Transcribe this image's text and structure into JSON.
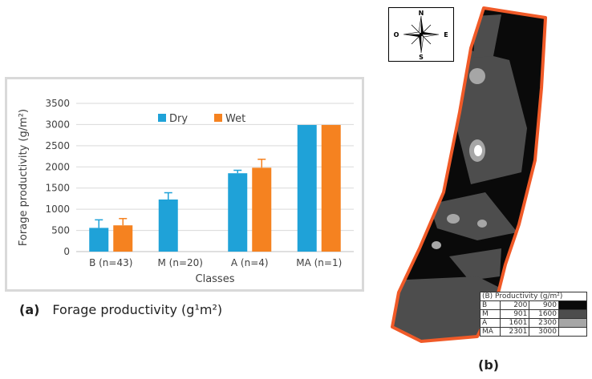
{
  "chart_data": {
    "type": "bar",
    "categories": [
      "B (n=43)",
      "M (n=20)",
      "A (n=4)",
      "MA (n=1)"
    ],
    "series": [
      {
        "name": "Dry",
        "color": "#1fa2d8",
        "values": [
          560,
          1230,
          1850,
          2990
        ],
        "errors": [
          190,
          160,
          70,
          0
        ]
      },
      {
        "name": "Wet",
        "color": "#f58220",
        "values": [
          620,
          null,
          1980,
          2990
        ],
        "errors": [
          160,
          null,
          200,
          0
        ]
      }
    ],
    "xlabel": "Classes",
    "ylabel": "Forage productivity (g/m²)",
    "ylim": [
      0,
      3500
    ],
    "yticks": [
      0,
      500,
      1000,
      1500,
      2000,
      2500,
      3000,
      3500
    ],
    "grid": true,
    "legend_position": "top-center"
  },
  "caption_a": {
    "letter": "(a)",
    "text": "Forage productivity (g¹m²)"
  },
  "compass": {
    "north": "N",
    "south": "S",
    "east": "E",
    "west": "O"
  },
  "map": {
    "legend_title": "(B) Productivity (g/m²)",
    "legend_rows": [
      {
        "cls": "B",
        "min": "200",
        "max": "900",
        "color": "#0a0a0a"
      },
      {
        "cls": "M",
        "min": "901",
        "max": "1600",
        "color": "#4d4d4d"
      },
      {
        "cls": "A",
        "min": "1601",
        "max": "2300",
        "color": "#a6a6a6"
      },
      {
        "cls": "MA",
        "min": "2301",
        "max": "3000",
        "color": "#ffffff"
      }
    ],
    "border_color": "#f05a28",
    "caption": "(b)"
  }
}
